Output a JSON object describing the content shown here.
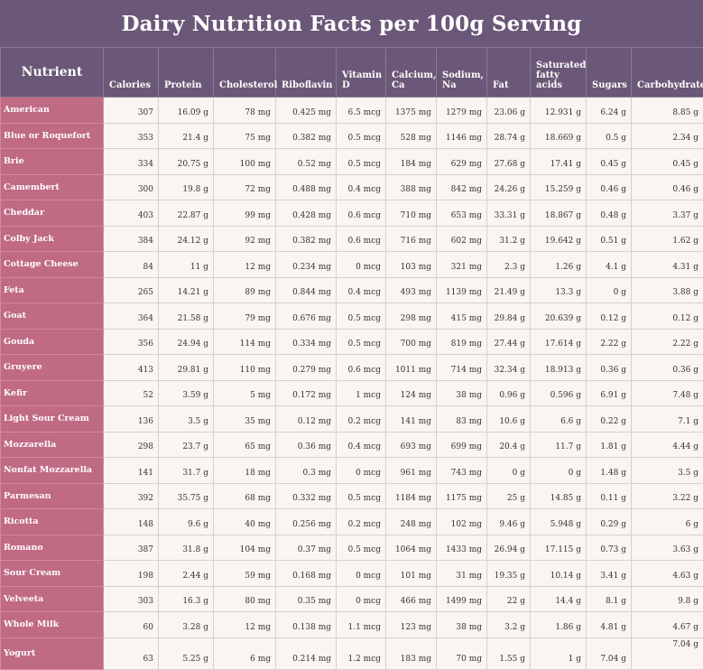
{
  "title": "Dairy Nutrition Facts per 100g Serving",
  "columns": {
    "nutrient": "Nutrient",
    "calories": "Calories",
    "protein": "Protein",
    "cholesterol": "Cholesterol",
    "riboflavin": "Riboflavin",
    "vitamin_d": "Vitamin D",
    "calcium": "Calcium, Ca",
    "sodium": "Sodium, Na",
    "fat": "Fat",
    "sat_fat": "Saturated fatty acids",
    "sugars": "Sugars",
    "carbohydrate": "Carbohydrate"
  },
  "rows": [
    [
      "American",
      "307",
      "16.09 g",
      "78 mg",
      "0.425 mg",
      "6.5 mcg",
      "1375 mg",
      "1279 mg",
      "23.06 g",
      "12.931 g",
      "6.24 g",
      "8.85 g"
    ],
    [
      "Blue or Roquefort",
      "353",
      "21.4 g",
      "75 mg",
      "0.382 mg",
      "0.5 mcg",
      "528 mg",
      "1146 mg",
      "28.74 g",
      "18.669 g",
      "0.5 g",
      "2.34 g"
    ],
    [
      "Brie",
      "334",
      "20.75 g",
      "100 mg",
      "0.52 mg",
      "0.5 mcg",
      "184 mg",
      "629 mg",
      "27.68 g",
      "17.41 g",
      "0.45 g",
      "0.45 g"
    ],
    [
      "Camembert",
      "300",
      "19.8 g",
      "72 mg",
      "0.488 mg",
      "0.4 mcg",
      "388 mg",
      "842 mg",
      "24.26 g",
      "15.259 g",
      "0.46 g",
      "0.46 g"
    ],
    [
      "Cheddar",
      "403",
      "22.87 g",
      "99 mg",
      "0.428 mg",
      "0.6 mcg",
      "710 mg",
      "653 mg",
      "33.31 g",
      "18.867 g",
      "0.48 g",
      "3.37 g"
    ],
    [
      "Colby Jack",
      "384",
      "24.12 g",
      "92 mg",
      "0.382 mg",
      "0.6 mcg",
      "716 mg",
      "602 mg",
      "31.2 g",
      "19.642 g",
      "0.51 g",
      "1.62 g"
    ],
    [
      "Cottage Cheese",
      "84",
      "11 g",
      "12 mg",
      "0.234 mg",
      "0 mcg",
      "103 mg",
      "321 mg",
      "2.3 g",
      "1.26 g",
      "4.1 g",
      "4.31 g"
    ],
    [
      "Feta",
      "265",
      "14.21 g",
      "89 mg",
      "0.844 mg",
      "0.4 mcg",
      "493 mg",
      "1139 mg",
      "21.49 g",
      "13.3 g",
      "0 g",
      "3.88 g"
    ],
    [
      "Goat",
      "364",
      "21.58 g",
      "79 mg",
      "0.676 mg",
      "0.5 mcg",
      "298 mg",
      "415 mg",
      "29.84 g",
      "20.639 g",
      "0.12 g",
      "0.12 g"
    ],
    [
      "Gouda",
      "356",
      "24.94 g",
      "114 mg",
      "0.334 mg",
      "0.5 mcg",
      "700 mg",
      "819 mg",
      "27.44 g",
      "17.614 g",
      "2.22 g",
      "2.22 g"
    ],
    [
      "Gruyere",
      "413",
      "29.81 g",
      "110 mg",
      "0.279 mg",
      "0.6 mcg",
      "1011 mg",
      "714 mg",
      "32.34 g",
      "18.913 g",
      "0.36 g",
      "0.36 g"
    ],
    [
      "Kefir",
      "52",
      "3.59 g",
      "5 mg",
      "0.172 mg",
      "1 mcg",
      "124 mg",
      "38 mg",
      "0.96 g",
      "0.596 g",
      "6.91 g",
      "7.48 g"
    ],
    [
      "Light Sour Cream",
      "136",
      "3.5 g",
      "35 mg",
      "0.12 mg",
      "0.2 mcg",
      "141 mg",
      "83 mg",
      "10.6 g",
      "6.6 g",
      "0.22 g",
      "7.1 g"
    ],
    [
      "Mozzarella",
      "298",
      "23.7 g",
      "65 mg",
      "0.36 mg",
      "0.4 mcg",
      "693 mg",
      "699 mg",
      "20.4 g",
      "11.7 g",
      "1.81 g",
      "4.44 g"
    ],
    [
      "Nonfat Mozzarella",
      "141",
      "31.7 g",
      "18 mg",
      "0.3 mg",
      "0 mcg",
      "961 mg",
      "743 mg",
      "0 g",
      "0 g",
      "1.48 g",
      "3.5 g"
    ],
    [
      "Parmesan",
      "392",
      "35.75 g",
      "68 mg",
      "0.332 mg",
      "0.5 mcg",
      "1184 mg",
      "1175 mg",
      "25 g",
      "14.85 g",
      "0.11 g",
      "3.22 g"
    ],
    [
      "Ricotta",
      "148",
      "9.6 g",
      "40 mg",
      "0.256 mg",
      "0.2 mcg",
      "248 mg",
      "102 mg",
      "9.46 g",
      "5.948 g",
      "0.29 g",
      "6 g"
    ],
    [
      "Romano",
      "387",
      "31.8 g",
      "104 mg",
      "0.37 mg",
      "0.5 mcg",
      "1064 mg",
      "1433 mg",
      "26.94 g",
      "17.115 g",
      "0.73 g",
      "3.63 g"
    ],
    [
      "Sour Cream",
      "198",
      "2.44 g",
      "59 mg",
      "0.168 mg",
      "0 mcg",
      "101 mg",
      "31 mg",
      "19.35 g",
      "10.14 g",
      "3.41 g",
      "4.63 g"
    ],
    [
      "Velveeta",
      "303",
      "16.3 g",
      "80 mg",
      "0.35 mg",
      "0 mcg",
      "466 mg",
      "1499 mg",
      "22 g",
      "14.4 g",
      "8.1 g",
      "9.8 g"
    ],
    [
      "Whole Milk",
      "60",
      "3.28 g",
      "12 mg",
      "0.138 mg",
      "1.1 mcg",
      "123 mg",
      "38 mg",
      "3.2 g",
      "1.86 g",
      "4.81 g",
      "4.67 g"
    ],
    [
      "Yogurt",
      "63",
      "5.25 g",
      "6 mg",
      "0.214 mg",
      "1.2 mcg",
      "183 mg",
      "70 mg",
      "1.55 g",
      "1 g",
      "7.04 g",
      "7.04 g"
    ]
  ],
  "colors": {
    "header_bg": "#6b5777",
    "name_bg": "#c06a84",
    "cell_bg": "#faf5f1"
  }
}
